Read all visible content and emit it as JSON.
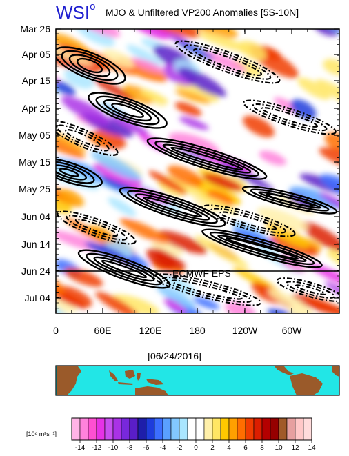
{
  "header": {
    "logo": "WSI",
    "logo_mark": "o",
    "title": "MJO & Unfiltered VP200 Anomalies [5S-10N]"
  },
  "chart_data": {
    "type": "heatmap",
    "title": "MJO & Unfiltered VP200 Anomalies [5S-10N]",
    "y_tick_labels": [
      "Mar 26",
      "Apr 05",
      "Apr 15",
      "Apr 25",
      "May 05",
      "May 15",
      "May 25",
      "Jun 04",
      "Jun 14",
      "Jun 24",
      "Jul 04"
    ],
    "x_tick_labels": [
      "0",
      "60E",
      "120E",
      "180",
      "120W",
      "60W"
    ],
    "x_range": [
      "0",
      "360"
    ],
    "y_range": [
      "Mar 24",
      "Jul 10"
    ],
    "forecast_marker_date": "Jun 24",
    "forecast_label": "ECMWF EPS",
    "contours": "MJO-filtered VP200 (solid positive, dash-dot negative)",
    "colorbar_ticks": [
      "-14",
      "-12",
      "-10",
      "-8",
      "-6",
      "-4",
      "-2",
      "0",
      "2",
      "4",
      "6",
      "8",
      "10",
      "12",
      "14"
    ],
    "colorbar_units": "[10^6 m^2 s^-1]",
    "colorbar_colors": [
      "#ffb4e6",
      "#ff82dc",
      "#ff50d2",
      "#e632e6",
      "#c850f0",
      "#aa32e6",
      "#7828dc",
      "#5a1ec8",
      "#1e1eaa",
      "#1e3cdc",
      "#3c6eff",
      "#5aa0ff",
      "#82c8ff",
      "#aae6ff",
      "#ffffff",
      "#ffffff",
      "#fff0aa",
      "#ffe664",
      "#ffc800",
      "#ffa000",
      "#ff6e00",
      "#f03c00",
      "#dc1e00",
      "#b40000",
      "#960000",
      "#a05a28",
      "#e6a0a0",
      "#ffc8c8",
      "#ffdcdc"
    ],
    "map_date": "[06/24/2016]"
  },
  "map": {
    "date": "[06/24/2016]",
    "ocean_color": "#22e6e6",
    "land_color": "#9a5a2a"
  },
  "colorbar": {
    "units_label": "[10⁶ m²s⁻¹]"
  }
}
